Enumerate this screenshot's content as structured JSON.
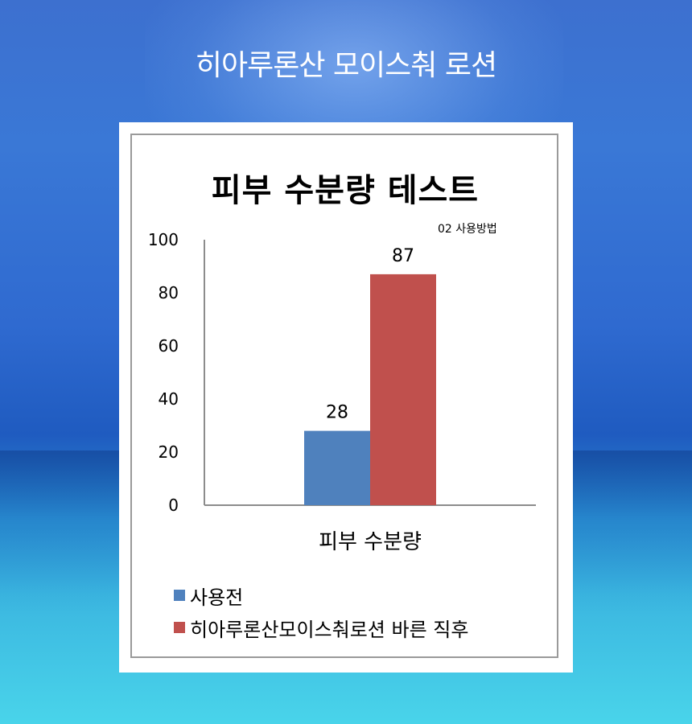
{
  "page": {
    "title": "히아루론산 모이스춰 로션"
  },
  "chart_data": {
    "type": "bar",
    "title": "피부 수분량 테스트",
    "annotation": "02  사용방법",
    "categories": [
      "피부 수분량"
    ],
    "series": [
      {
        "name": "사용전",
        "values": [
          28
        ],
        "color": "#4f81bd"
      },
      {
        "name": "히아루론산모이스춰로션 바른 직후",
        "values": [
          87
        ],
        "color": "#c0504d"
      }
    ],
    "ylim": [
      0,
      100
    ],
    "yticks": [
      0,
      20,
      40,
      60,
      80,
      100
    ],
    "xlabel": "",
    "ylabel": "",
    "grid": false,
    "legend": "bottom-left",
    "data_labels": true
  }
}
